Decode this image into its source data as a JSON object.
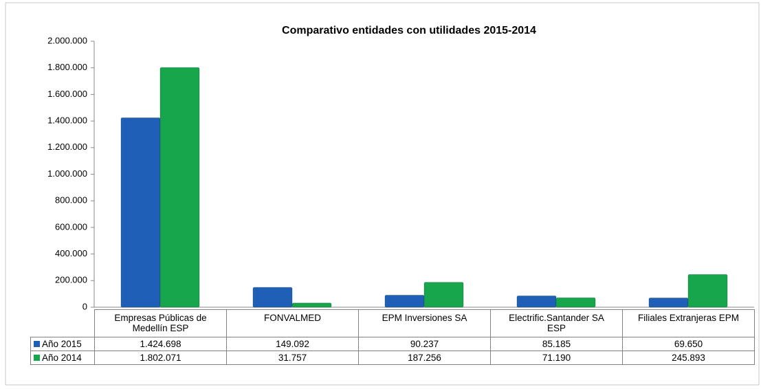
{
  "chart_data": {
    "type": "bar",
    "title": "Comparativo entidades con utilidades 2015-2014",
    "categories": [
      "Empresas Públicas de Medellín ESP",
      "FONVALMED",
      "EPM Inversiones SA",
      "Electrific.Santander SA ESP",
      "Filiales Extranjeras EPM"
    ],
    "series": [
      {
        "name": "Año 2015",
        "color": "#1f5fb8",
        "values": [
          1424698,
          149092,
          90237,
          85185,
          69650
        ],
        "value_labels": [
          "1.424.698",
          "149.092",
          "90.237",
          "85.185",
          "69.650"
        ]
      },
      {
        "name": "Año 2014",
        "color": "#17a64b",
        "values": [
          1802071,
          31757,
          187256,
          71190,
          245893
        ],
        "value_labels": [
          "1.802.071",
          "31.757",
          "187.256",
          "71.190",
          "245.893"
        ]
      }
    ],
    "ylim": [
      0,
      2000000
    ],
    "yticks": [
      0,
      {
        "value": 200000,
        "label": "200.000"
      },
      {
        "value": 400000,
        "label": "400.000"
      },
      {
        "value": 600000,
        "label": "600.000"
      },
      {
        "value": 800000,
        "label": "800.000"
      },
      {
        "value": 1000000,
        "label": "1.000.000"
      },
      {
        "value": 1200000,
        "label": "1.200.000"
      },
      {
        "value": 1400000,
        "label": "1.400.000"
      },
      {
        "value": 1600000,
        "label": "1.600.000"
      },
      {
        "value": 1800000,
        "label": "1.800.000"
      },
      {
        "value": 2000000,
        "label": "2.000.000"
      }
    ],
    "grid": false,
    "data_table": true
  }
}
